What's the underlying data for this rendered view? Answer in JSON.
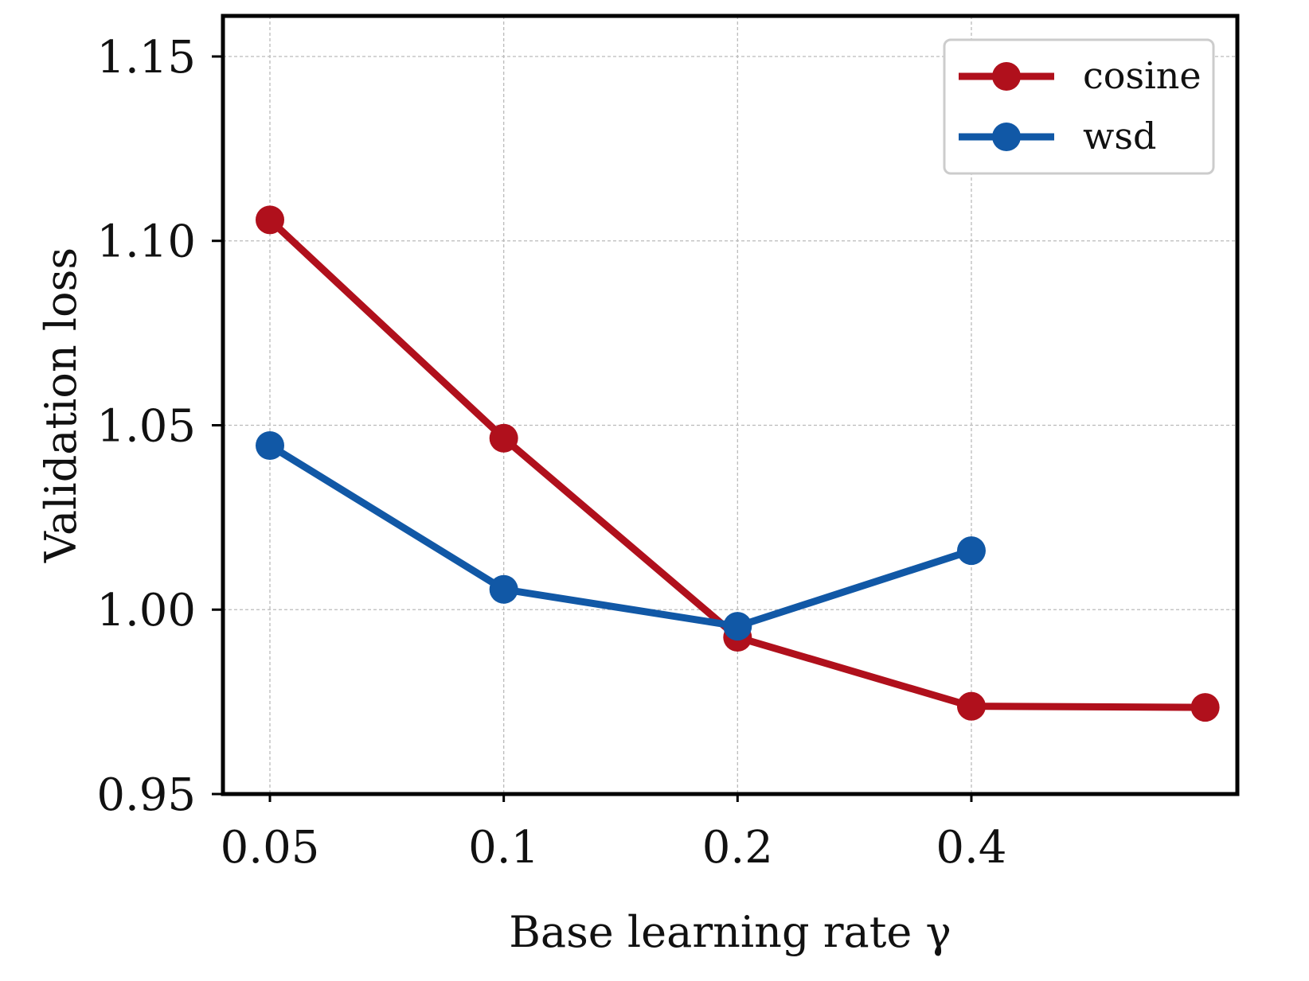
{
  "chart_data": {
    "type": "line",
    "title": "",
    "xlabel": "Base learning rate γ",
    "ylabel": "Validation loss",
    "x_scale": "log2",
    "x_ticks": [
      0.05,
      0.1,
      0.2,
      0.4
    ],
    "x_tick_labels": [
      "0.05",
      "0.1",
      "0.2",
      "0.4"
    ],
    "xlim": [
      0.0435,
      0.88
    ],
    "y_ticks": [
      0.95,
      1.0,
      1.05,
      1.1,
      1.15
    ],
    "y_tick_labels": [
      "0.95",
      "1.00",
      "1.05",
      "1.10",
      "1.15"
    ],
    "ylim": [
      0.95,
      1.161
    ],
    "grid": true,
    "legend_position": "top-right",
    "series": [
      {
        "name": "cosine",
        "color": "#b0101c",
        "x": [
          0.05,
          0.1,
          0.2,
          0.4,
          0.8
        ],
        "y": [
          1.1057,
          1.0465,
          0.9925,
          0.9738,
          0.9735
        ]
      },
      {
        "name": "wsd",
        "color": "#1158a6",
        "x": [
          0.05,
          0.1,
          0.2,
          0.4
        ],
        "y": [
          1.0445,
          1.0055,
          0.9955,
          1.016
        ]
      }
    ]
  }
}
